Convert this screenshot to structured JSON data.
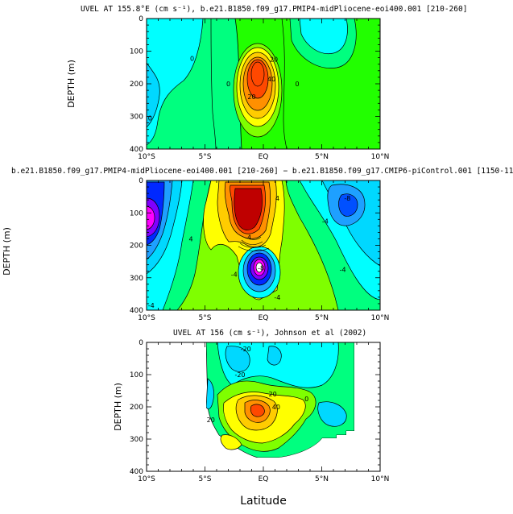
{
  "colors": {
    "green": "#22ff00",
    "lime": "#7fff00",
    "teal": "#00ff7f",
    "aqua": "#00ffff",
    "cyan": "#00d8ff",
    "skyblue": "#1ea0ff",
    "blue": "#0028ff",
    "yellow": "#ffff00",
    "gold": "#ffcc00",
    "orange": "#ff9000",
    "redorange": "#ff4800",
    "darkred": "#bf0000",
    "purple": "#8000ff",
    "magenta": "#ff00ff",
    "white": "#ffffff"
  },
  "chart_data": [
    {
      "type": "heatmap",
      "title": "UVEL AT 155.8°E (cm s⁻¹), b.e21.B1850.f09_g17.PMIP4-midPliocene-eoi400.001 [210-260]",
      "ylabel": "DEPTH (m)",
      "xlabel": "",
      "x_ticks": [
        "10°S",
        "5°S",
        "EQ",
        "5°N",
        "10°N"
      ],
      "y_ticks": [
        "0",
        "100",
        "200",
        "300",
        "400"
      ],
      "xlim": [
        -10,
        10
      ],
      "ylim": [
        400,
        0
      ],
      "contour_labels": [
        {
          "text": "20",
          "lat": 0.9,
          "depth": 125
        },
        {
          "text": "40",
          "lat": 0.7,
          "depth": 185
        },
        {
          "text": "20",
          "lat": -1.0,
          "depth": 240
        },
        {
          "text": "0",
          "lat": -6.1,
          "depth": 122
        },
        {
          "text": "0",
          "lat": -3.0,
          "depth": 200
        },
        {
          "text": "0",
          "lat": 2.9,
          "depth": 200
        },
        {
          "text": "0",
          "lat": -9.7,
          "depth": 305
        }
      ],
      "features": [
        {
          "kind": "core",
          "lat": -0.3,
          "depth": 165,
          "value": 40
        }
      ]
    },
    {
      "type": "heatmap",
      "title": "b.e21.B1850.f09_g17.PMIP4-midPliocene-eoi400.001 [210-260] − b.e21.B1850.f09_g17.CMIP6-piControl.001 [1150-1199]",
      "ylabel": "DEPTH (m)",
      "xlabel": "",
      "x_ticks": [
        "10°S",
        "5°S",
        "EQ",
        "5°N",
        "10°N"
      ],
      "y_ticks": [
        "0",
        "100",
        "200",
        "300",
        "400"
      ],
      "xlim": [
        -10,
        10
      ],
      "ylim": [
        400,
        0
      ],
      "contour_labels": [
        {
          "text": "-8",
          "lat": 7.2,
          "depth": 55
        },
        {
          "text": "-4",
          "lat": 5.3,
          "depth": 125
        },
        {
          "text": "-4",
          "lat": 6.8,
          "depth": 275
        },
        {
          "text": "-4",
          "lat": -1.3,
          "depth": 175
        },
        {
          "text": "-4",
          "lat": 1.2,
          "depth": 360
        },
        {
          "text": "4",
          "lat": -6.2,
          "depth": 180
        },
        {
          "text": "-4",
          "lat": -9.6,
          "depth": 385
        },
        {
          "text": "-4",
          "lat": -2.5,
          "depth": 290
        },
        {
          "text": "4",
          "lat": 1.2,
          "depth": 55
        },
        {
          "text": "-8",
          "lat": -0.2,
          "depth": 270
        }
      ],
      "features": [
        {
          "kind": "max",
          "lat": -1.8,
          "depth": 135,
          "value": 16
        },
        {
          "kind": "min",
          "lat": -0.2,
          "depth": 285,
          "value": -24
        },
        {
          "kind": "min",
          "lat": -9.5,
          "depth": 110,
          "value": -16
        }
      ]
    },
    {
      "type": "heatmap",
      "title": "UVEL AT 156 (cm s⁻¹), Johnson et al (2002)",
      "ylabel": "DEPTH (m)",
      "xlabel": "Latitude",
      "x_ticks": [
        "10°S",
        "5°S",
        "EQ",
        "5°N",
        "10°N"
      ],
      "y_ticks": [
        "0",
        "100",
        "200",
        "300",
        "400"
      ],
      "xlim": [
        -10,
        10
      ],
      "ylim": [
        400,
        0
      ],
      "contour_labels": [
        {
          "text": "-20",
          "lat": -2.0,
          "depth": 100
        },
        {
          "text": "-20",
          "lat": -1.5,
          "depth": 20
        },
        {
          "text": "20",
          "lat": 0.8,
          "depth": 160
        },
        {
          "text": "40",
          "lat": 1.1,
          "depth": 200
        },
        {
          "text": "20",
          "lat": -4.5,
          "depth": 240
        },
        {
          "text": "0",
          "lat": 3.7,
          "depth": 175
        }
      ],
      "features": [
        {
          "kind": "core",
          "lat": -0.2,
          "depth": 200,
          "value": 40
        },
        {
          "kind": "max",
          "lat": -1.8,
          "depth": 320,
          "value": 20
        }
      ]
    }
  ]
}
